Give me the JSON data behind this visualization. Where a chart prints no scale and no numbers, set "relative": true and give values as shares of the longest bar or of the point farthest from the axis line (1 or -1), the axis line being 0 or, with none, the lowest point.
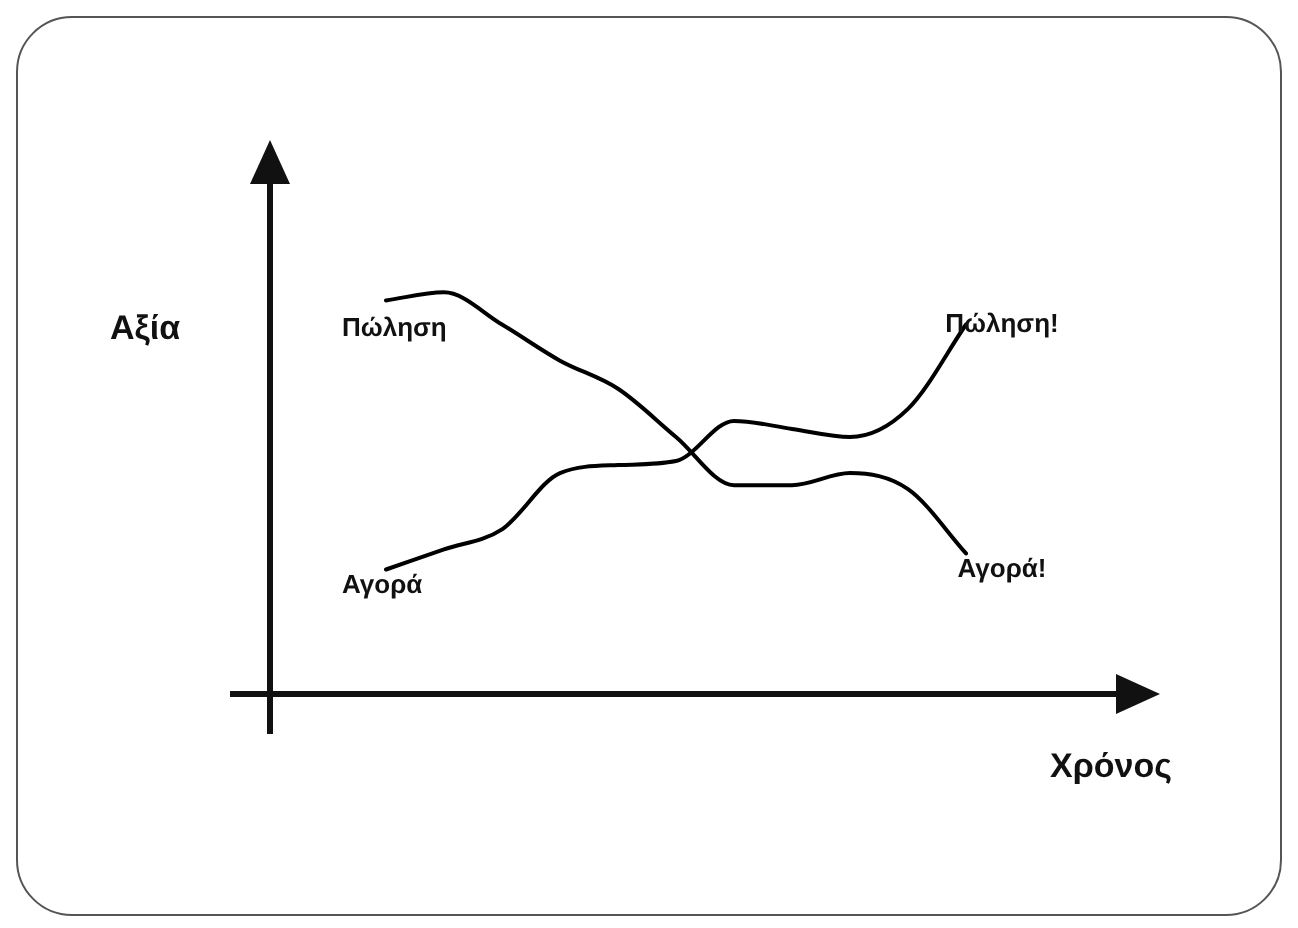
{
  "chart_data": {
    "type": "line",
    "relative": true,
    "xlabel": "Χρόνος",
    "ylabel": "Αξία",
    "categories": [
      null,
      null,
      null,
      null,
      null,
      null,
      null,
      null,
      null,
      null,
      null,
      null,
      null,
      null,
      null,
      null
    ],
    "series": [
      {
        "color": "#000000",
        "values": [
          null,
          null,
          0.98,
          1.0,
          0.92,
          0.83,
          0.76,
          0.64,
          0.52,
          0.52,
          0.55,
          0.51,
          0.35,
          null,
          null,
          null
        ]
      },
      {
        "color": "#000000",
        "values": [
          null,
          null,
          0.31,
          0.36,
          0.41,
          0.55,
          0.57,
          0.58,
          0.68,
          0.66,
          0.64,
          0.71,
          0.92,
          null,
          null,
          null
        ]
      }
    ],
    "annotations": [
      "Πώληση",
      "Αγορά",
      "Πώληση!",
      "Αγορά!"
    ],
    "legend": false,
    "marker": "none",
    "line_style": "solid"
  }
}
